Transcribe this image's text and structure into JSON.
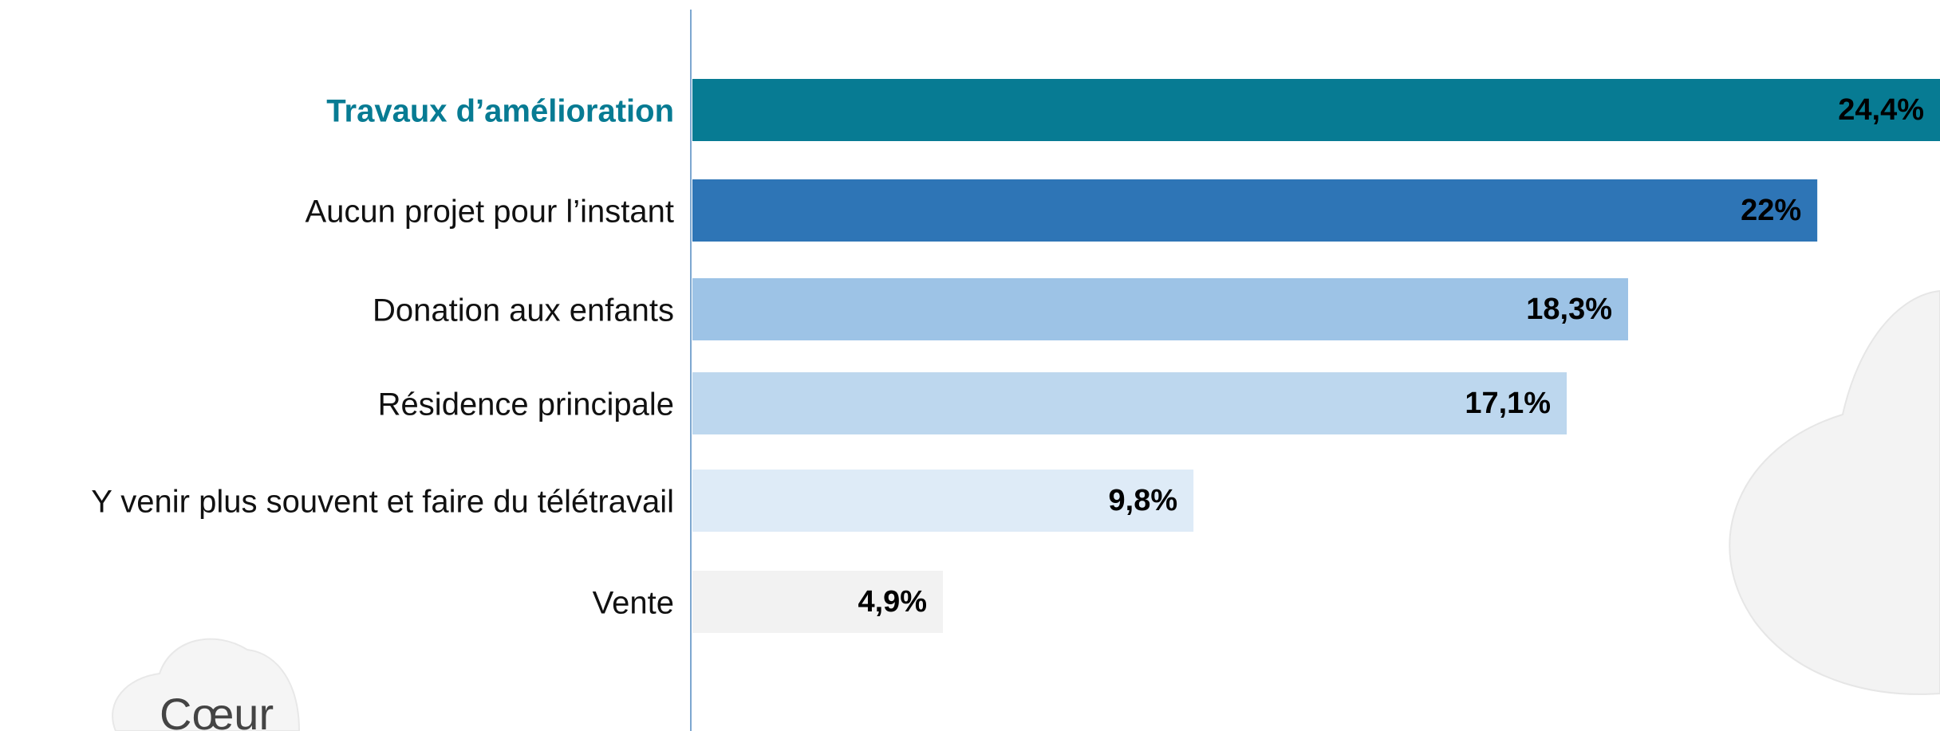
{
  "chart_data": {
    "type": "bar",
    "orientation": "horizontal",
    "categories": [
      "Travaux d’amélioration",
      "Aucun projet pour l’instant",
      "Donation aux enfants",
      "Résidence principale",
      "Y venir plus souvent et faire du télétravail",
      "Vente"
    ],
    "values": [
      24.4,
      22,
      18.3,
      17.1,
      9.8,
      4.9
    ],
    "value_labels": [
      "24,4%",
      "22%",
      "18,3%",
      "17,1%",
      "9,8%",
      "4,9%"
    ],
    "colors": [
      "#077b93",
      "#2e75b6",
      "#9dc3e6",
      "#bdd7ee",
      "#deebf7",
      "#f2f2f2"
    ],
    "logo_text": "Cœur"
  }
}
